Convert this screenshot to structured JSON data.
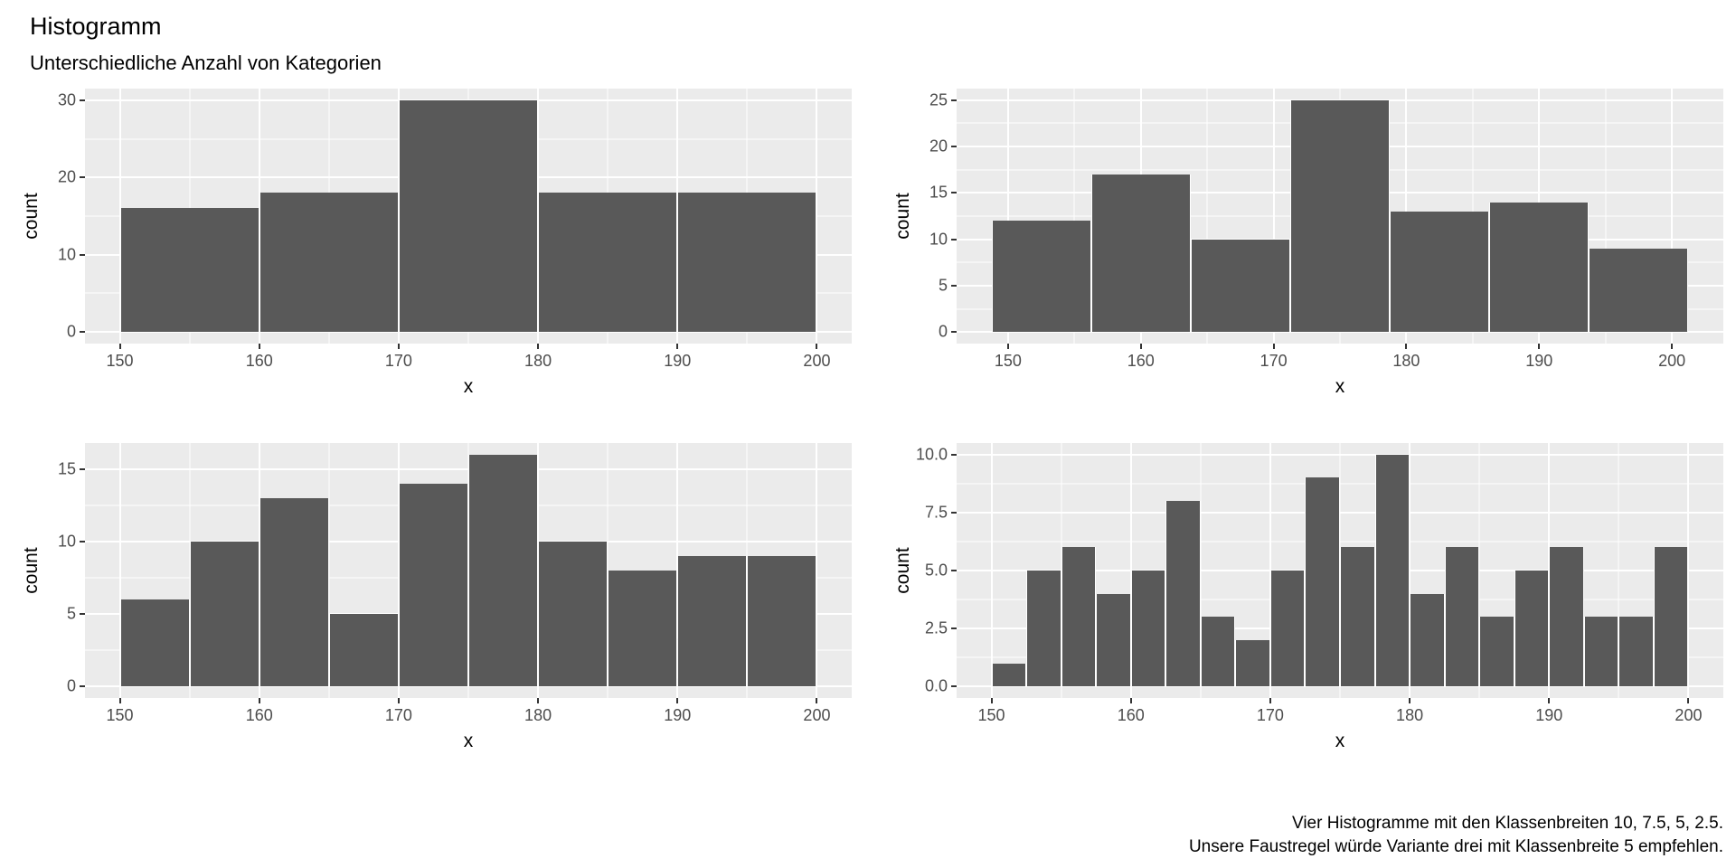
{
  "header": {
    "title": "Histogramm",
    "subtitle": "Unterschiedliche Anzahl von Kategorien"
  },
  "caption": {
    "line1": "Vier Histogramme mit den Klassenbreiten 10, 7.5, 5, 2.5.",
    "line2": "Unsere Faustregel würde Variante drei mit Klassenbreite 5 empfehlen."
  },
  "colors": {
    "bar_fill": "#595959",
    "panel_background": "#EBEBEB",
    "gridline": "#FFFFFF",
    "tick_text": "#4D4D4D",
    "tick_mark": "#333333"
  },
  "chart_data": [
    {
      "type": "bar",
      "name": "histogram-binwidth-10",
      "binwidth": 10,
      "bin_start": 150,
      "counts": [
        16,
        18,
        30,
        18,
        18
      ],
      "xlabel": "x",
      "ylabel": "count",
      "x_ticks": [
        150,
        160,
        170,
        180,
        190,
        200
      ],
      "x_tick_labels": [
        "150",
        "160",
        "170",
        "180",
        "190",
        "200"
      ],
      "x_minor": [
        155,
        165,
        175,
        185,
        195
      ],
      "x_domain": [
        147.5,
        202.5
      ],
      "y_ticks": [
        0,
        10,
        20,
        30
      ],
      "y_tick_labels": [
        "0",
        "10",
        "20",
        "30"
      ],
      "y_minor": [
        5,
        15,
        25
      ],
      "y_domain": [
        -1.5,
        31.5
      ],
      "grid": true,
      "legend": "none"
    },
    {
      "type": "bar",
      "name": "histogram-binwidth-7.5",
      "binwidth": 7.5,
      "bin_start": 148.75,
      "counts": [
        12,
        17,
        10,
        25,
        13,
        14,
        9
      ],
      "xlabel": "x",
      "ylabel": "count",
      "x_ticks": [
        150,
        160,
        170,
        180,
        190,
        200
      ],
      "x_tick_labels": [
        "150",
        "160",
        "170",
        "180",
        "190",
        "200"
      ],
      "x_minor": [
        155,
        165,
        175,
        185,
        195
      ],
      "x_domain": [
        146.125,
        203.875
      ],
      "y_ticks": [
        0,
        5,
        10,
        15,
        20,
        25
      ],
      "y_tick_labels": [
        "0",
        "5",
        "10",
        "15",
        "20",
        "25"
      ],
      "y_minor": [
        2.5,
        7.5,
        12.5,
        17.5,
        22.5
      ],
      "y_domain": [
        -1.25,
        26.25
      ],
      "grid": true,
      "legend": "none"
    },
    {
      "type": "bar",
      "name": "histogram-binwidth-5",
      "binwidth": 5,
      "bin_start": 150,
      "counts": [
        6,
        10,
        13,
        5,
        14,
        16,
        10,
        8,
        9,
        9
      ],
      "xlabel": "x",
      "ylabel": "count",
      "x_ticks": [
        150,
        160,
        170,
        180,
        190,
        200
      ],
      "x_tick_labels": [
        "150",
        "160",
        "170",
        "180",
        "190",
        "200"
      ],
      "x_minor": [
        155,
        165,
        175,
        185,
        195
      ],
      "x_domain": [
        147.5,
        202.5
      ],
      "y_ticks": [
        0,
        5,
        10,
        15
      ],
      "y_tick_labels": [
        "0",
        "5",
        "10",
        "15"
      ],
      "y_minor": [
        2.5,
        7.5,
        12.5
      ],
      "y_domain": [
        -0.8,
        16.8
      ],
      "grid": true,
      "legend": "none"
    },
    {
      "type": "bar",
      "name": "histogram-binwidth-2.5",
      "binwidth": 2.5,
      "bin_start": 150,
      "counts": [
        1,
        5,
        6,
        4,
        5,
        8,
        3,
        2,
        5,
        9,
        6,
        10,
        4,
        6,
        3,
        5,
        6,
        3,
        3,
        6
      ],
      "xlabel": "x",
      "ylabel": "count",
      "x_ticks": [
        150,
        160,
        170,
        180,
        190,
        200
      ],
      "x_tick_labels": [
        "150",
        "160",
        "170",
        "180",
        "190",
        "200"
      ],
      "x_minor": [
        155,
        165,
        175,
        185,
        195
      ],
      "x_domain": [
        147.5,
        202.5
      ],
      "y_ticks": [
        0,
        2.5,
        5,
        7.5,
        10
      ],
      "y_tick_labels": [
        "0.0",
        "2.5",
        "5.0",
        "7.5",
        "10.0"
      ],
      "y_minor": [
        1.25,
        3.75,
        6.25,
        8.75
      ],
      "y_domain": [
        -0.5,
        10.5
      ],
      "grid": true,
      "legend": "none"
    }
  ]
}
